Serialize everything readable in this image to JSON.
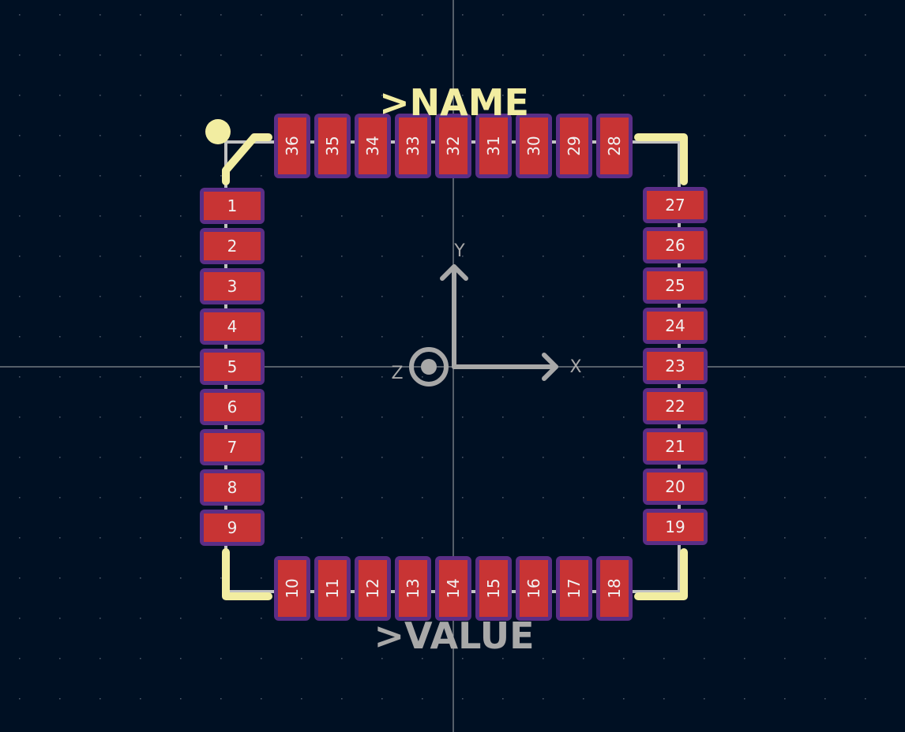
{
  "reference_text": ">NAME",
  "value_text": ">VALUE",
  "axes": {
    "x": "X",
    "y": "Y",
    "z": "Z"
  },
  "pins": {
    "left": [
      "1",
      "2",
      "3",
      "4",
      "5",
      "6",
      "7",
      "8",
      "9"
    ],
    "bottom": [
      "10",
      "11",
      "12",
      "13",
      "14",
      "15",
      "16",
      "17",
      "18"
    ],
    "right": [
      "19",
      "20",
      "21",
      "22",
      "23",
      "24",
      "25",
      "26",
      "27"
    ],
    "top": [
      "28",
      "29",
      "30",
      "31",
      "32",
      "33",
      "34",
      "35",
      "36"
    ]
  },
  "colors": {
    "background": "#001023",
    "grid_dot": "#4a5566",
    "crosshair": "#c8c8c8",
    "pad_fill": "#c83434",
    "pad_mask": "#5b2e86",
    "pad_label": "#f2f2f2",
    "courtyard": "#c2c2c2",
    "fab_outline": "#b9a6c9",
    "silkscreen": "#f2eda1",
    "axis": "#a8a8a8",
    "value_text": "#a8a8a8"
  }
}
